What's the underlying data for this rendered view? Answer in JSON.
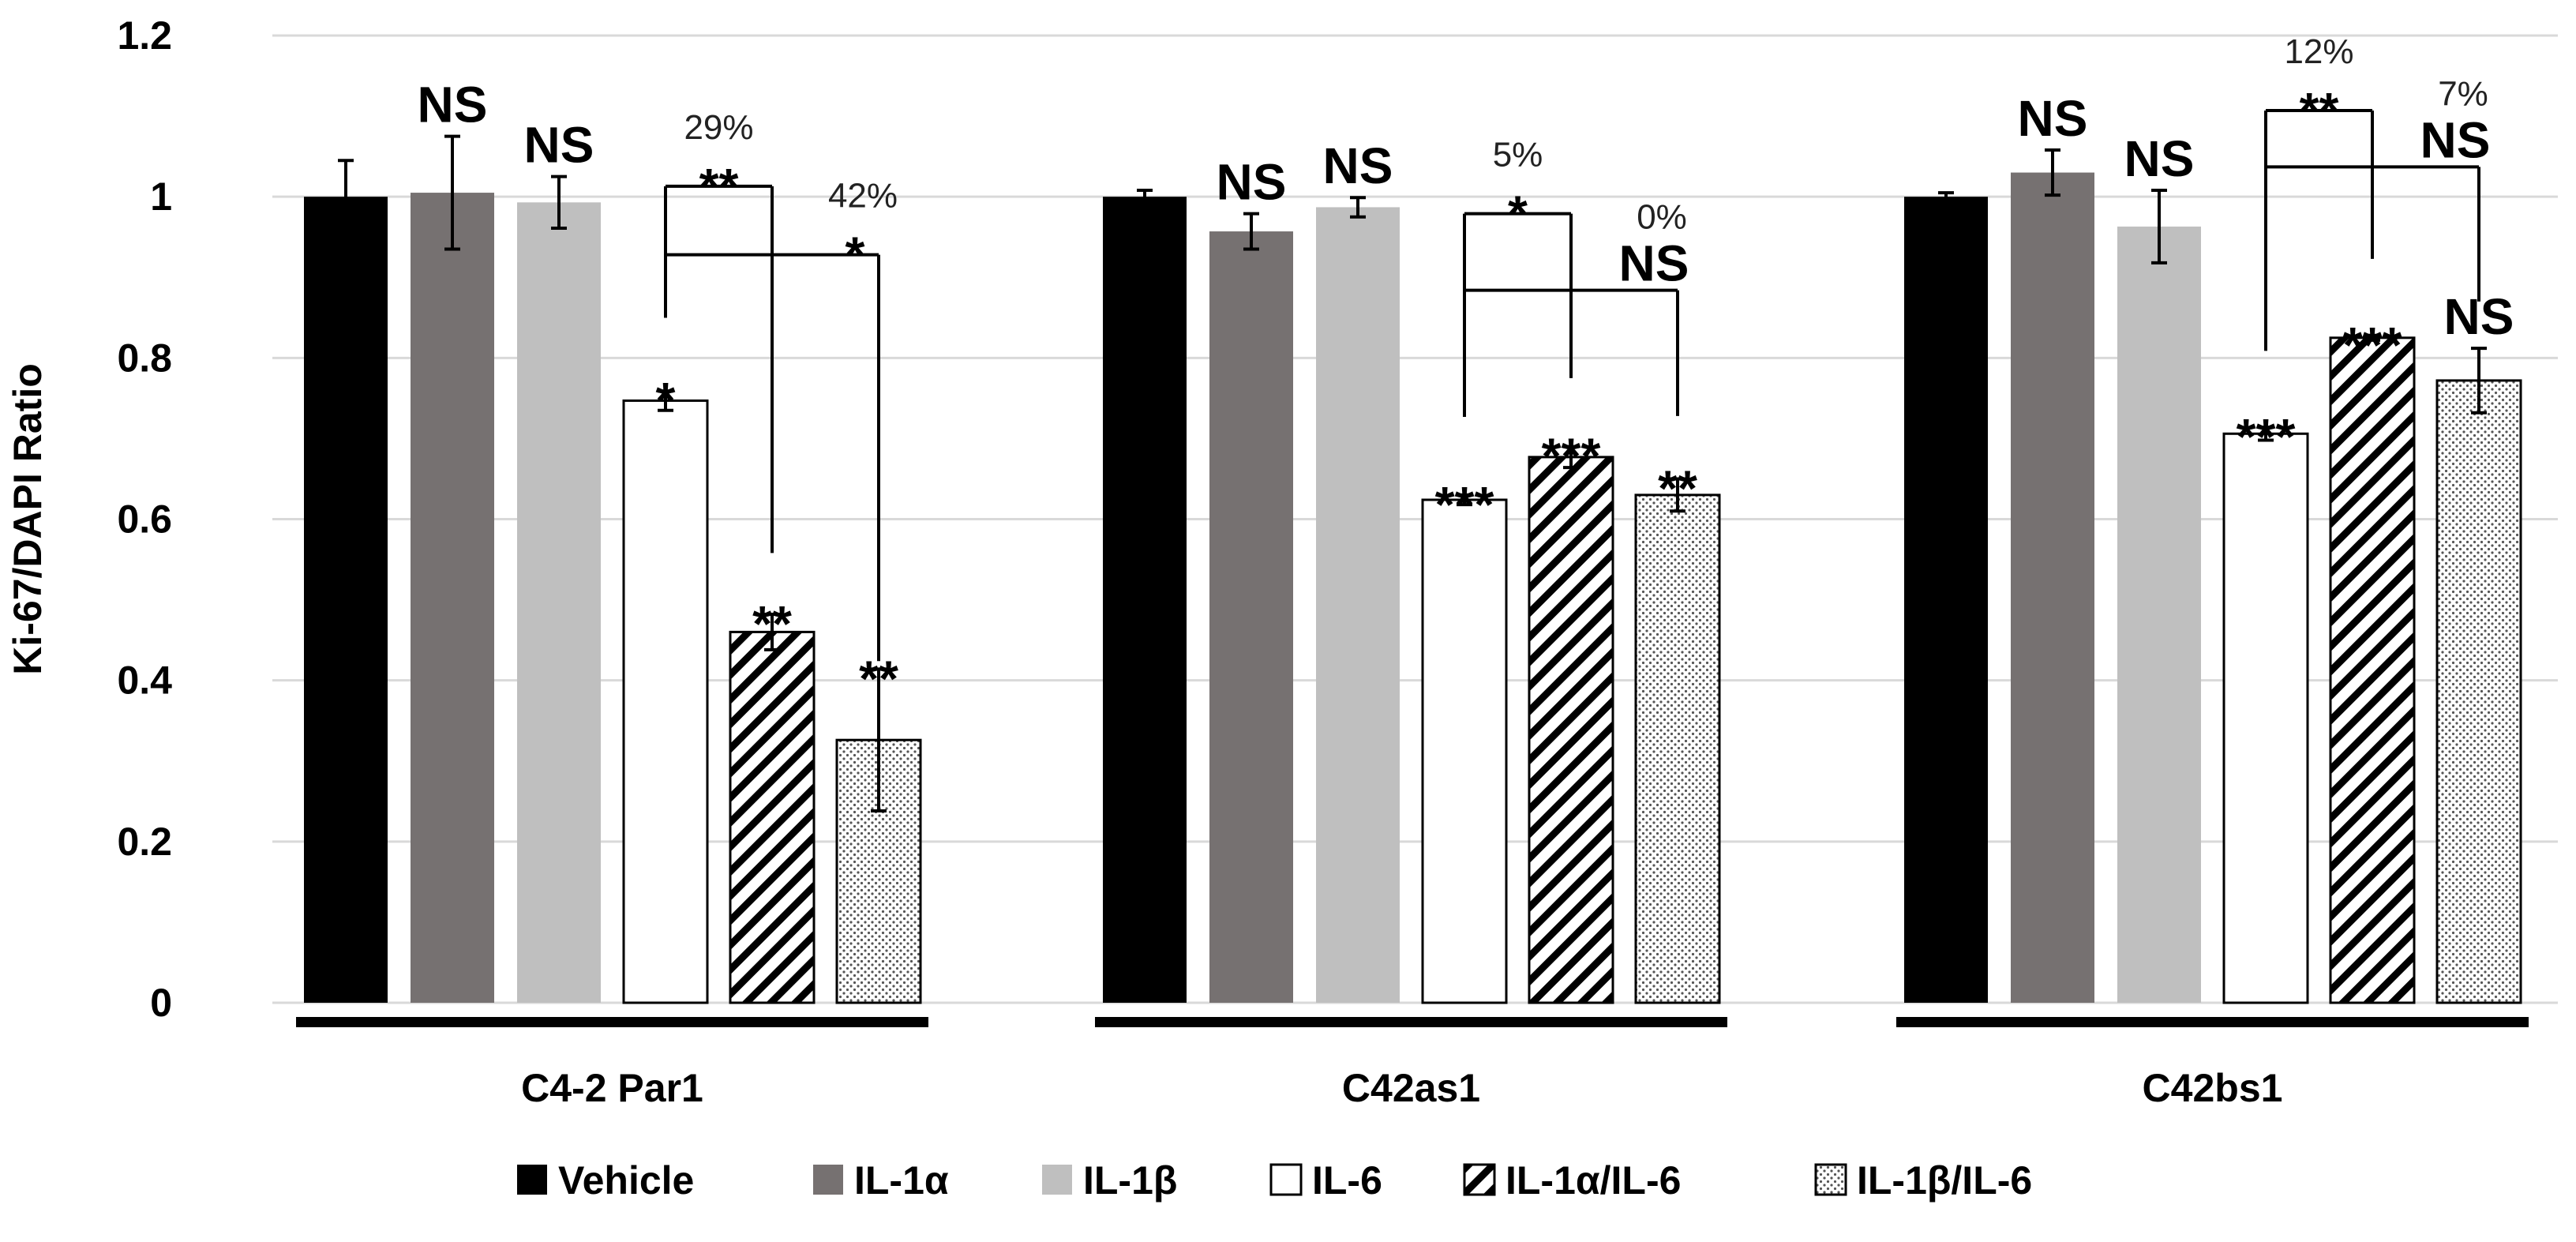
{
  "chart_data": {
    "type": "bar",
    "title": "",
    "xlabel": "",
    "ylabel": "Ki-67/DAPI Ratio",
    "ylim": [
      0,
      1.2
    ],
    "yticks": [
      "0",
      "0.2",
      "0.4",
      "0.6",
      "0.8",
      "1",
      "1.2"
    ],
    "grid": true,
    "legend_position": "bottom",
    "categories": [
      "C4-2 Par1",
      "C42as1",
      "C42bs1"
    ],
    "series": [
      {
        "name": "Vehicle",
        "fill": "solid-black",
        "color": "#000000",
        "values": [
          1.0,
          1.0,
          1.0
        ],
        "errors": [
          0.045,
          0.008,
          0.005
        ],
        "significance": [
          "",
          "",
          ""
        ]
      },
      {
        "name": "IL-1α",
        "fill": "solid-dark-gray",
        "color": "#767171",
        "values": [
          1.005,
          0.957,
          1.03
        ],
        "errors": [
          0.07,
          0.022,
          0.028
        ],
        "significance": [
          "NS",
          "NS",
          "NS"
        ]
      },
      {
        "name": "IL-1β",
        "fill": "solid-light-gray",
        "color": "#bfbfbf",
        "values": [
          0.993,
          0.987,
          0.963
        ],
        "errors": [
          0.032,
          0.012,
          0.045
        ],
        "significance": [
          "NS",
          "NS",
          "NS"
        ]
      },
      {
        "name": "IL-6",
        "fill": "white",
        "color": "#ffffff",
        "values": [
          0.747,
          0.624,
          0.706
        ],
        "errors": [
          0.012,
          0.006,
          0.008
        ],
        "significance": [
          "*",
          "***",
          "***"
        ]
      },
      {
        "name": "IL-1α/IL-6",
        "fill": "diagonal-hatch",
        "color": "#000000",
        "values": [
          0.46,
          0.677,
          0.825
        ],
        "errors": [
          0.022,
          0.013,
          0.003
        ],
        "significance": [
          "**",
          "***",
          "***"
        ]
      },
      {
        "name": "IL-1β/IL-6",
        "fill": "dotted",
        "color": "#7f7f7f",
        "values": [
          0.326,
          0.63,
          0.772
        ],
        "errors": [
          0.088,
          0.02,
          0.04
        ],
        "significance": [
          "**",
          "**",
          "NS"
        ]
      }
    ],
    "comparisons": [
      {
        "group": "C4-2 Par1",
        "from": "IL-6",
        "to": "IL-1α/IL-6",
        "percent": "29%",
        "significance": "**"
      },
      {
        "group": "C4-2 Par1",
        "from": "IL-6",
        "to": "IL-1β/IL-6",
        "percent": "42%",
        "significance": "*"
      },
      {
        "group": "C42as1",
        "from": "IL-6",
        "to": "IL-1α/IL-6",
        "percent": "5%",
        "significance": "*"
      },
      {
        "group": "C42as1",
        "from": "IL-6",
        "to": "IL-1β/IL-6",
        "percent": "0%",
        "significance": "NS"
      },
      {
        "group": "C42bs1",
        "from": "IL-6",
        "to": "IL-1α/IL-6",
        "percent": "12%",
        "significance": "**"
      },
      {
        "group": "C42bs1",
        "from": "IL-6",
        "to": "IL-1β/IL-6",
        "percent": "7%",
        "significance": "NS"
      }
    ]
  }
}
